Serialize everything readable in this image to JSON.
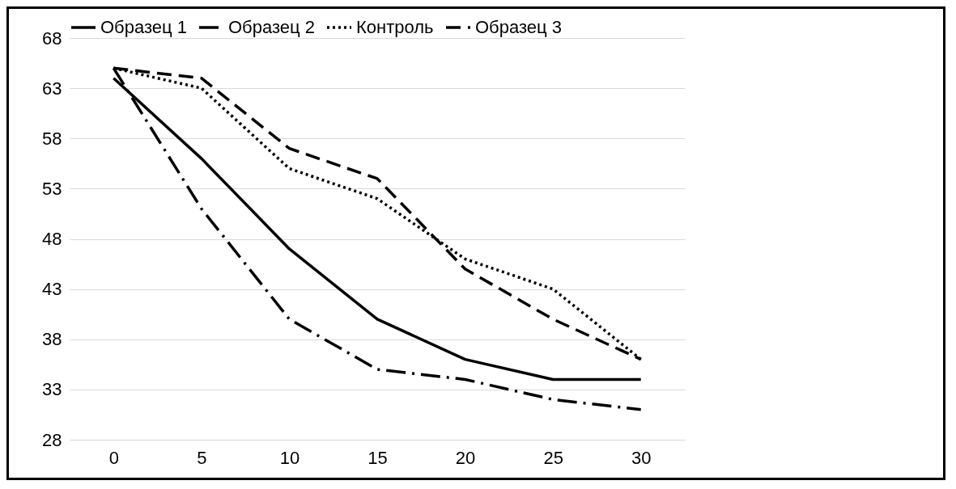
{
  "chart_data": {
    "type": "line",
    "categories": [
      "0",
      "5",
      "10",
      "15",
      "20",
      "25",
      "30"
    ],
    "series": [
      {
        "name": "Образец 1",
        "color": "#000000",
        "line_style": "solid",
        "values": [
          64,
          56,
          47,
          40,
          36,
          34,
          34
        ]
      },
      {
        "name": "Образец 2",
        "color": "#000000",
        "line_style": "dashdot",
        "values": [
          65,
          51,
          40,
          35,
          34,
          32,
          31
        ]
      },
      {
        "name": "Контроль",
        "color": "#000000",
        "line_style": "dotted",
        "values": [
          65,
          63,
          55,
          52,
          46,
          43,
          36
        ]
      },
      {
        "name": "Образец 3",
        "color": "#000000",
        "line_style": "dashed",
        "values": [
          65,
          64,
          57,
          54,
          45,
          40,
          36
        ]
      }
    ],
    "ylim": [
      28,
      68
    ],
    "yticks": [
      28,
      33,
      38,
      43,
      48,
      53,
      58,
      63,
      68
    ],
    "grid": "y",
    "legend": "top",
    "marker": "none"
  }
}
